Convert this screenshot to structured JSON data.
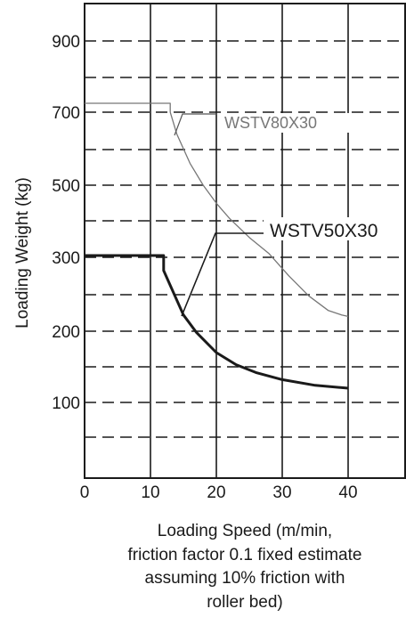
{
  "chart_data": {
    "type": "line",
    "ylabel": "Loading Weight (kg)",
    "xlabel_lines": [
      "Loading Speed (m/min,",
      "friction factor 0.1 fixed estimate",
      "assuming 10% friction with",
      "roller bed)"
    ],
    "x_ticks": [
      "0",
      "10",
      "20",
      "30",
      "40"
    ],
    "y_ticks": [
      "100",
      "200",
      "300",
      "500",
      "700",
      "900"
    ],
    "xlim": [
      0,
      45
    ],
    "grid": true,
    "series": [
      {
        "name": "WSTV80X30",
        "color": "#777777",
        "points": [
          [
            0,
            725
          ],
          [
            13,
            725
          ],
          [
            13,
            700
          ],
          [
            14,
            640
          ],
          [
            16,
            560
          ],
          [
            18,
            500
          ],
          [
            20,
            450
          ],
          [
            22,
            408
          ],
          [
            25,
            355
          ],
          [
            28,
            310
          ],
          [
            31,
            275
          ],
          [
            34,
            248
          ],
          [
            37,
            228
          ],
          [
            39,
            222
          ],
          [
            40,
            220
          ]
        ]
      },
      {
        "name": "WSTV50X30",
        "color": "#1a1a1a",
        "points": [
          [
            0,
            305
          ],
          [
            12,
            305
          ],
          [
            12,
            282
          ],
          [
            13,
            262
          ],
          [
            15,
            222
          ],
          [
            17,
            198
          ],
          [
            20,
            170
          ],
          [
            23,
            153
          ],
          [
            26,
            142
          ],
          [
            30,
            132
          ],
          [
            35,
            124
          ],
          [
            40,
            120
          ]
        ]
      }
    ],
    "annotations": [
      "WSTV80X30",
      "WSTV50X30"
    ]
  }
}
